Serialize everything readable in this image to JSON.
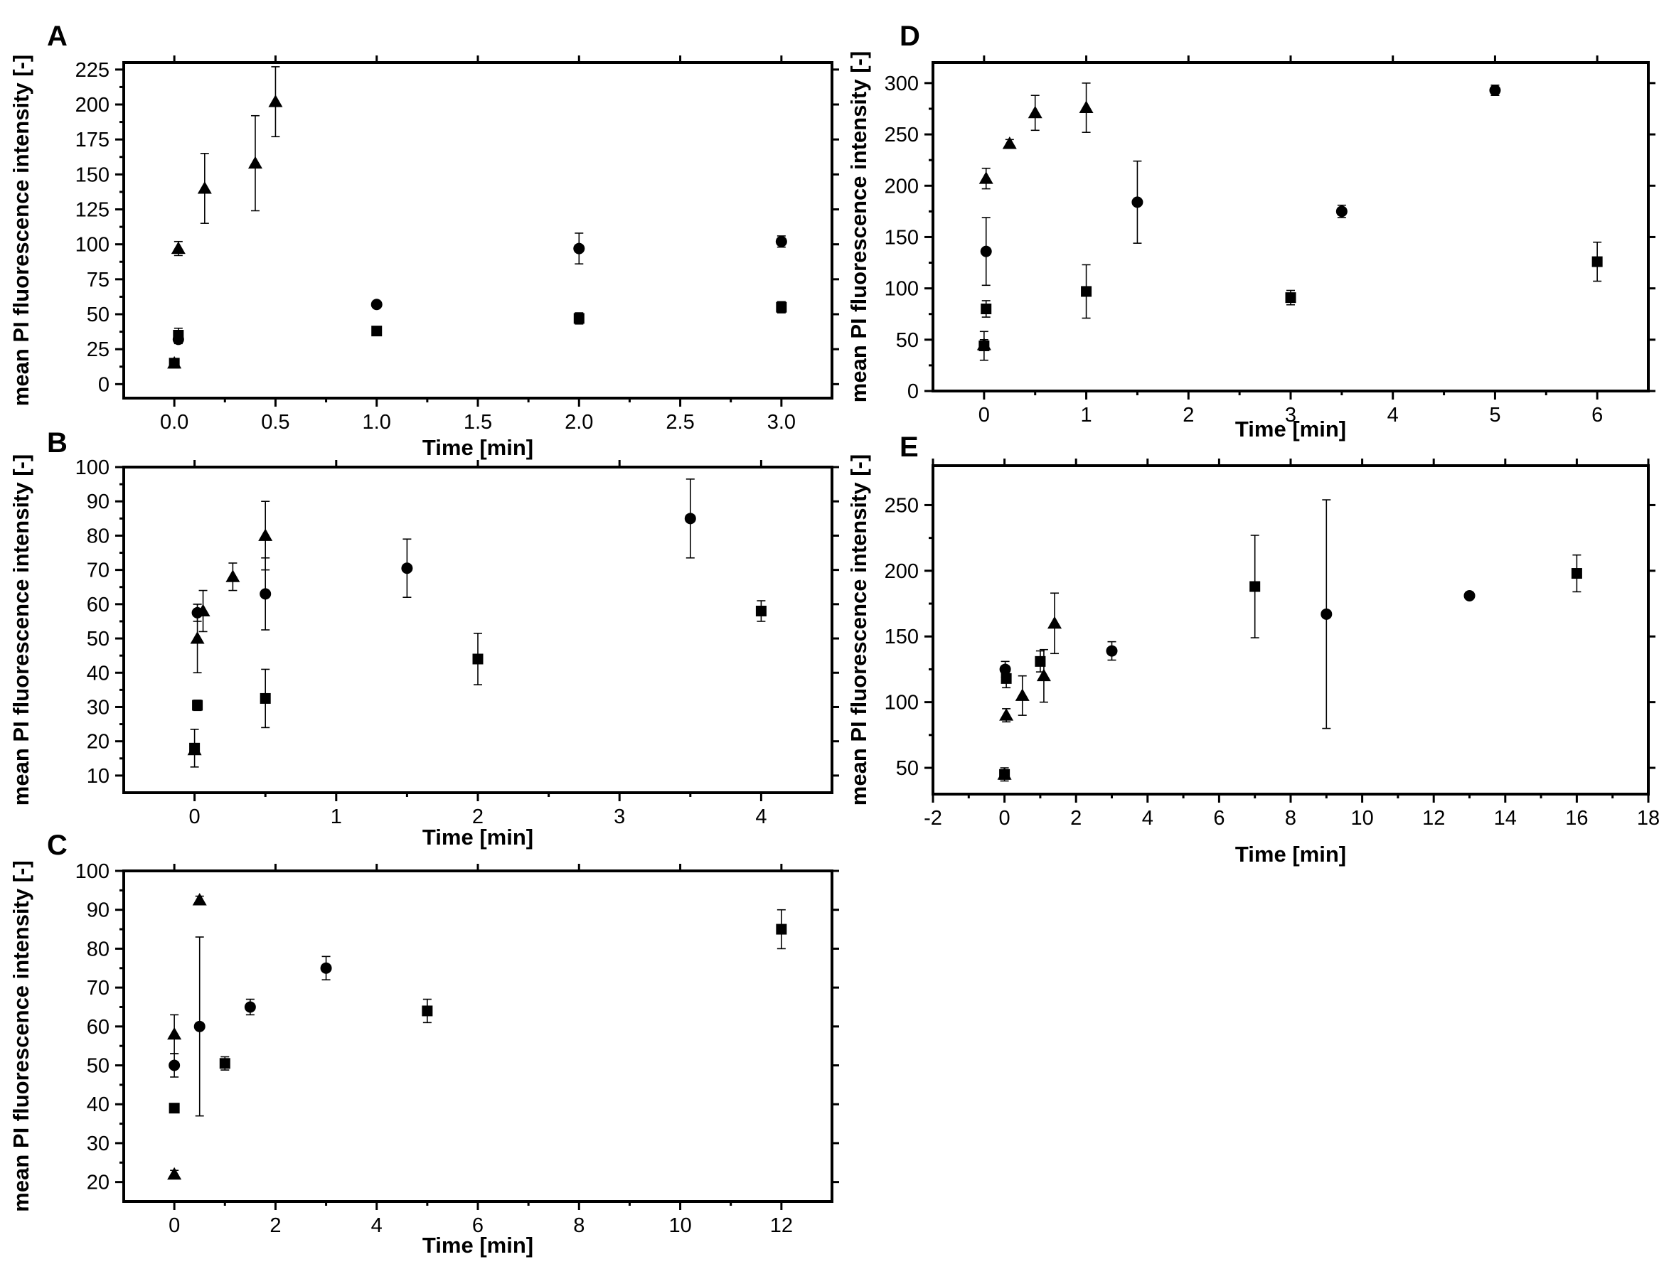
{
  "chart_data": [
    {
      "panel": "A",
      "type": "scatter",
      "xlabel": "Time [min]",
      "ylabel": "mean PI fluorescence intensity [-]",
      "xlim": [
        -0.25,
        3.25
      ],
      "ylim": [
        -10,
        230
      ],
      "xticks": [
        "0.0",
        "0.5",
        "1.0",
        "1.5",
        "2.0",
        "2.5",
        "3.0"
      ],
      "xtick_values": [
        0,
        0.5,
        1.0,
        1.5,
        2.0,
        2.5,
        3.0
      ],
      "yticks": [
        "0",
        "25",
        "50",
        "75",
        "100",
        "125",
        "150",
        "175",
        "200",
        "225"
      ],
      "ytick_values": [
        0,
        25,
        50,
        75,
        100,
        125,
        150,
        175,
        200,
        225
      ],
      "series": [
        {
          "marker": "square",
          "points": [
            [
              0,
              15,
              3
            ],
            [
              0.02,
              35,
              5
            ],
            [
              1.0,
              38,
              3
            ],
            [
              2.0,
              47,
              4
            ],
            [
              3.0,
              55,
              4
            ]
          ]
        },
        {
          "marker": "circle",
          "points": [
            [
              0.02,
              32,
              3
            ],
            [
              1.0,
              57,
              2
            ],
            [
              2.0,
              97,
              11
            ],
            [
              3.0,
              102,
              4
            ]
          ]
        },
        {
          "marker": "triangle",
          "points": [
            [
              0,
              15,
              3
            ],
            [
              0.02,
              97,
              5
            ],
            [
              0.15,
              140,
              25
            ],
            [
              0.4,
              158,
              34
            ],
            [
              0.5,
              202,
              25
            ]
          ]
        }
      ]
    },
    {
      "panel": "B",
      "type": "scatter",
      "xlabel": "Time [min]",
      "ylabel": "mean PI fluorescence intensity [-]",
      "xlim": [
        -0.5,
        4.5
      ],
      "ylim": [
        5,
        100
      ],
      "xticks": [
        "0",
        "1",
        "2",
        "3",
        "4"
      ],
      "xtick_values": [
        0,
        1,
        2,
        3,
        4
      ],
      "yticks": [
        "10",
        "20",
        "30",
        "40",
        "50",
        "60",
        "70",
        "80",
        "90",
        "100"
      ],
      "ytick_values": [
        10,
        20,
        30,
        40,
        50,
        60,
        70,
        80,
        90,
        100
      ],
      "series": [
        {
          "marker": "square",
          "points": [
            [
              0,
              18,
              5.5
            ],
            [
              0.02,
              30.5,
              1.5
            ],
            [
              0.5,
              32.5,
              8.5
            ],
            [
              2.0,
              44,
              7.5
            ],
            [
              4.0,
              58,
              3
            ]
          ]
        },
        {
          "marker": "circle",
          "points": [
            [
              0.02,
              57.5,
              2.5
            ],
            [
              0.5,
              63,
              10.5
            ],
            [
              1.5,
              70.5,
              8.5
            ],
            [
              3.5,
              85,
              11.5
            ]
          ]
        },
        {
          "marker": "triangle",
          "points": [
            [
              0,
              17.5,
              1
            ],
            [
              0.02,
              50,
              10
            ],
            [
              0.06,
              58,
              6
            ],
            [
              0.27,
              68,
              4
            ],
            [
              0.5,
              80,
              10
            ]
          ]
        }
      ]
    },
    {
      "panel": "C",
      "type": "scatter",
      "xlabel": "Time [min]",
      "ylabel": "mean PI fluorescence intensity [-]",
      "xlim": [
        -1,
        13
      ],
      "ylim": [
        15,
        100
      ],
      "xticks": [
        "0",
        "2",
        "4",
        "6",
        "8",
        "10",
        "12"
      ],
      "xtick_values": [
        0,
        2,
        4,
        6,
        8,
        10,
        12
      ],
      "yticks": [
        "20",
        "30",
        "40",
        "50",
        "60",
        "70",
        "80",
        "90",
        "100"
      ],
      "ytick_values": [
        20,
        30,
        40,
        50,
        60,
        70,
        80,
        90,
        100
      ],
      "series": [
        {
          "marker": "square",
          "points": [
            [
              0,
              39,
              0.7
            ],
            [
              1.0,
              50.5,
              1.7
            ],
            [
              5.0,
              64,
              3
            ],
            [
              12.0,
              85,
              5
            ]
          ]
        },
        {
          "marker": "circle",
          "points": [
            [
              0,
              50,
              3
            ],
            [
              0.5,
              60,
              23
            ],
            [
              1.5,
              65,
              2
            ],
            [
              3.0,
              75,
              3
            ]
          ]
        },
        {
          "marker": "triangle",
          "points": [
            [
              0,
              22,
              1
            ],
            [
              0,
              58,
              5
            ],
            [
              0.5,
              92.5,
              1
            ]
          ]
        }
      ]
    },
    {
      "panel": "D",
      "type": "scatter",
      "xlabel": "Time [min]",
      "ylabel": "mean PI fluorescence intensity [-]",
      "xlim": [
        -0.5,
        6.5
      ],
      "ylim": [
        0,
        320
      ],
      "xticks": [
        "0",
        "1",
        "2",
        "3",
        "4",
        "5",
        "6"
      ],
      "xtick_values": [
        0,
        1,
        2,
        3,
        4,
        5,
        6
      ],
      "yticks": [
        "0",
        "50",
        "100",
        "150",
        "200",
        "250",
        "300"
      ],
      "ytick_values": [
        0,
        50,
        100,
        150,
        200,
        250,
        300
      ],
      "series": [
        {
          "marker": "square",
          "points": [
            [
              0,
              44,
              14
            ],
            [
              0.02,
              80,
              8
            ],
            [
              1.0,
              97,
              26
            ],
            [
              3.0,
              91,
              7
            ],
            [
              6.0,
              126,
              19
            ]
          ]
        },
        {
          "marker": "circle",
          "points": [
            [
              0.02,
              136,
              33
            ],
            [
              1.5,
              184,
              40
            ],
            [
              3.5,
              175,
              6
            ],
            [
              5.0,
              293,
              5
            ]
          ]
        },
        {
          "marker": "triangle",
          "points": [
            [
              0,
              45,
              5
            ],
            [
              0.02,
              207,
              10
            ],
            [
              0.25,
              241,
              4
            ],
            [
              0.5,
              271,
              17
            ],
            [
              1.0,
              276,
              24
            ]
          ]
        }
      ]
    },
    {
      "panel": "E",
      "type": "scatter",
      "xlabel": "Time [min]",
      "ylabel": "mean PI fluorescence intensity [-]",
      "xlim": [
        -2,
        18
      ],
      "ylim": [
        30,
        280
      ],
      "xticks": [
        "-2",
        "0",
        "2",
        "4",
        "6",
        "8",
        "10",
        "12",
        "14",
        "16",
        "18"
      ],
      "xtick_values": [
        -2,
        0,
        2,
        4,
        6,
        8,
        10,
        12,
        14,
        16,
        18
      ],
      "yticks": [
        "50",
        "100",
        "150",
        "200",
        "250"
      ],
      "ytick_values": [
        50,
        100,
        150,
        200,
        250
      ],
      "series": [
        {
          "marker": "square",
          "points": [
            [
              0,
              45,
              5
            ],
            [
              0.05,
              118,
              7
            ],
            [
              1.0,
              131,
              8
            ],
            [
              7.0,
              188,
              39
            ],
            [
              16.0,
              198,
              14
            ]
          ]
        },
        {
          "marker": "circle",
          "points": [
            [
              0.02,
              125,
              6
            ],
            [
              3.0,
              139,
              7
            ],
            [
              9.0,
              167,
              87
            ],
            [
              13.0,
              181,
              2
            ]
          ]
        },
        {
          "marker": "triangle",
          "points": [
            [
              0,
              45,
              3
            ],
            [
              0.05,
              90,
              5
            ],
            [
              0.5,
              105,
              15
            ],
            [
              1.1,
              120,
              20
            ],
            [
              1.4,
              160,
              23
            ]
          ]
        }
      ]
    }
  ]
}
